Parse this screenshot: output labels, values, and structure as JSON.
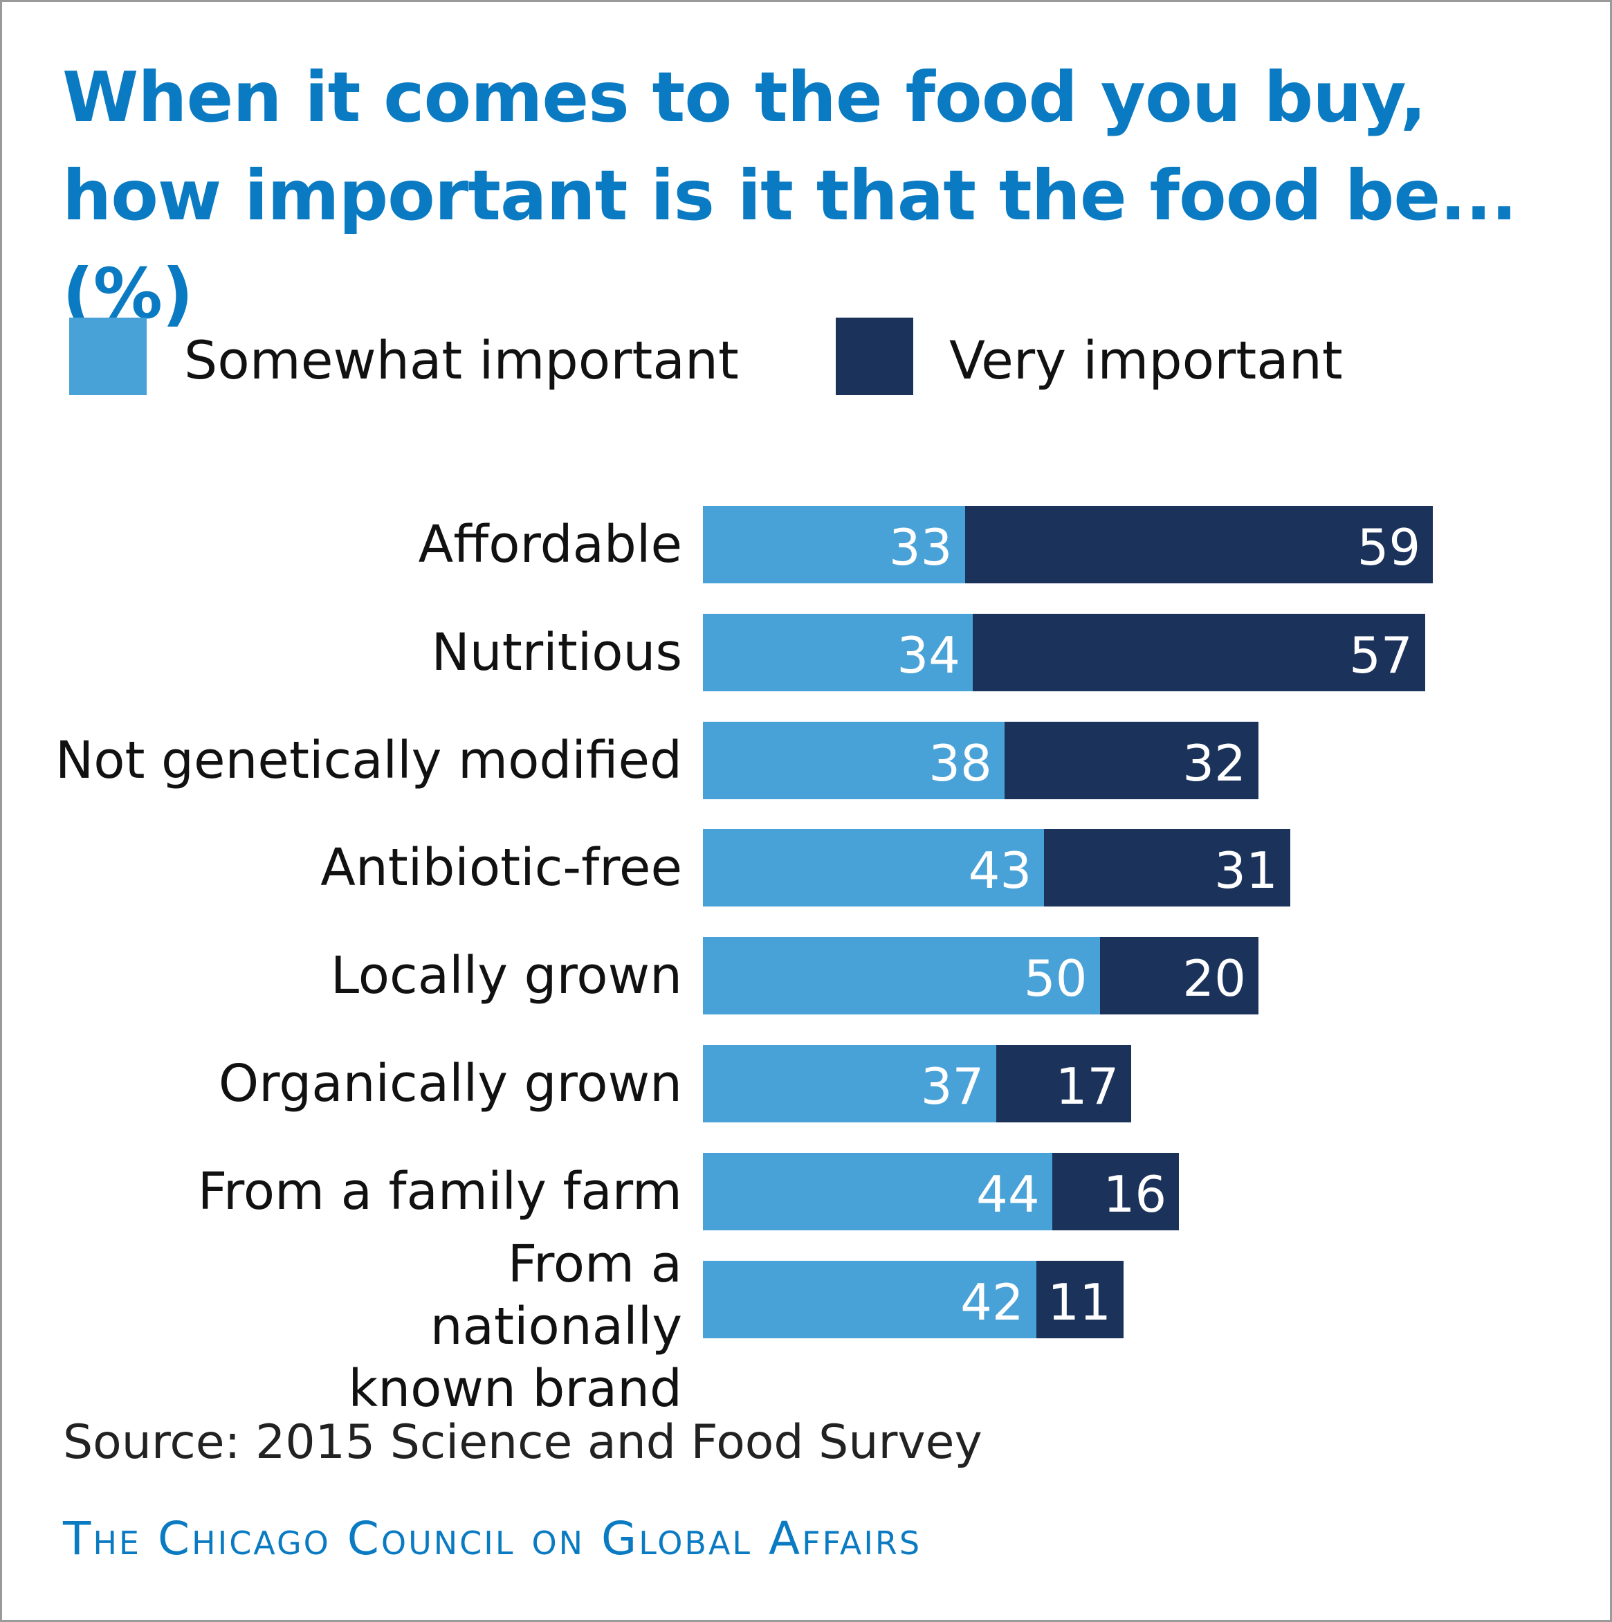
{
  "chart_data": {
    "type": "bar",
    "orientation": "horizontal",
    "stacked": true,
    "title": "When it comes to the food you buy, how important is it that the food be... (%)",
    "categories": [
      "Affordable",
      "Nutritious",
      "Not genetically modified",
      "Antibiotic-free",
      "Locally grown",
      "Organically grown",
      "From a family farm",
      "From a nationally known brand"
    ],
    "series": [
      {
        "name": "Somewhat important",
        "color": "#48a2d7",
        "values": [
          33,
          34,
          38,
          43,
          50,
          37,
          44,
          42
        ]
      },
      {
        "name": "Very important",
        "color": "#1b325b",
        "values": [
          59,
          57,
          32,
          31,
          20,
          17,
          16,
          11
        ]
      }
    ],
    "legend_placement": "top-left",
    "grid": false,
    "xlim": [
      0,
      100
    ]
  },
  "source": "Source: 2015 Science and Food Survey",
  "footer": "The Chicago Council on Global Affairs",
  "colors": {
    "title": "#0a7bc2",
    "somewhat": "#48a2d7",
    "very": "#1b325b"
  }
}
